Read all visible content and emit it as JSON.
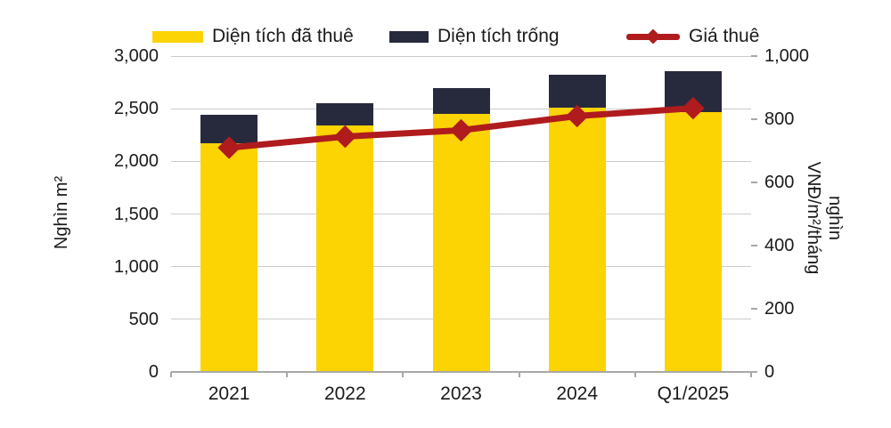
{
  "chart": {
    "background": "#ffffff",
    "text_color": "#1a1a1a",
    "grid_color": "#cccccc",
    "axis_color": "#a8a8a8"
  },
  "legend": {
    "items": [
      {
        "label": "Diện tích đã thuê",
        "swatch": "bar",
        "color": "#fcd303"
      },
      {
        "label": "Diện tích trống",
        "swatch": "bar",
        "color": "#272a3d"
      },
      {
        "label": "Giá thuê",
        "swatch": "line",
        "color": "#b01b1e"
      }
    ]
  },
  "chart_data": {
    "type": "bar",
    "subtype": "stacked-bar-with-line-dual-axis",
    "categories": [
      "2021",
      "2022",
      "2023",
      "2024",
      "Q1/2025"
    ],
    "series": [
      {
        "name": "Diện tích đã thuê",
        "type": "bar",
        "axis": "left",
        "color": "#fcd303",
        "values": [
          2170,
          2340,
          2450,
          2510,
          2470
        ]
      },
      {
        "name": "Diện tích trống",
        "type": "bar",
        "axis": "left",
        "color": "#272a3d",
        "values": [
          270,
          210,
          250,
          310,
          390
        ]
      },
      {
        "name": "Giá thuê",
        "type": "line",
        "axis": "right",
        "color": "#b01b1e",
        "marker": "diamond",
        "values": [
          710,
          745,
          765,
          810,
          835
        ]
      }
    ],
    "left_axis": {
      "title": "Nghìn m²",
      "min": 0,
      "max": 3000,
      "step": 500,
      "ticks": [
        {
          "value": 3000,
          "label": "3,000"
        },
        {
          "value": 2500,
          "label": "2,500"
        },
        {
          "value": 2000,
          "label": "2,000"
        },
        {
          "value": 1500,
          "label": "1,500"
        },
        {
          "value": 1000,
          "label": "1,000"
        },
        {
          "value": 500,
          "label": "500"
        },
        {
          "value": 0,
          "label": "0"
        }
      ]
    },
    "right_axis": {
      "title": "nghìn VNĐ/m²/tháng",
      "title_lines": [
        "nghìn",
        "VNĐ/m²/tháng"
      ],
      "min": 0,
      "max": 1000,
      "step": 200,
      "ticks": [
        {
          "value": 1000,
          "label": "1,000"
        },
        {
          "value": 800,
          "label": "800"
        },
        {
          "value": 600,
          "label": "600"
        },
        {
          "value": 400,
          "label": "400"
        },
        {
          "value": 200,
          "label": "200"
        },
        {
          "value": 0,
          "label": "0"
        }
      ]
    },
    "grid": true,
    "legend_position": "top"
  }
}
